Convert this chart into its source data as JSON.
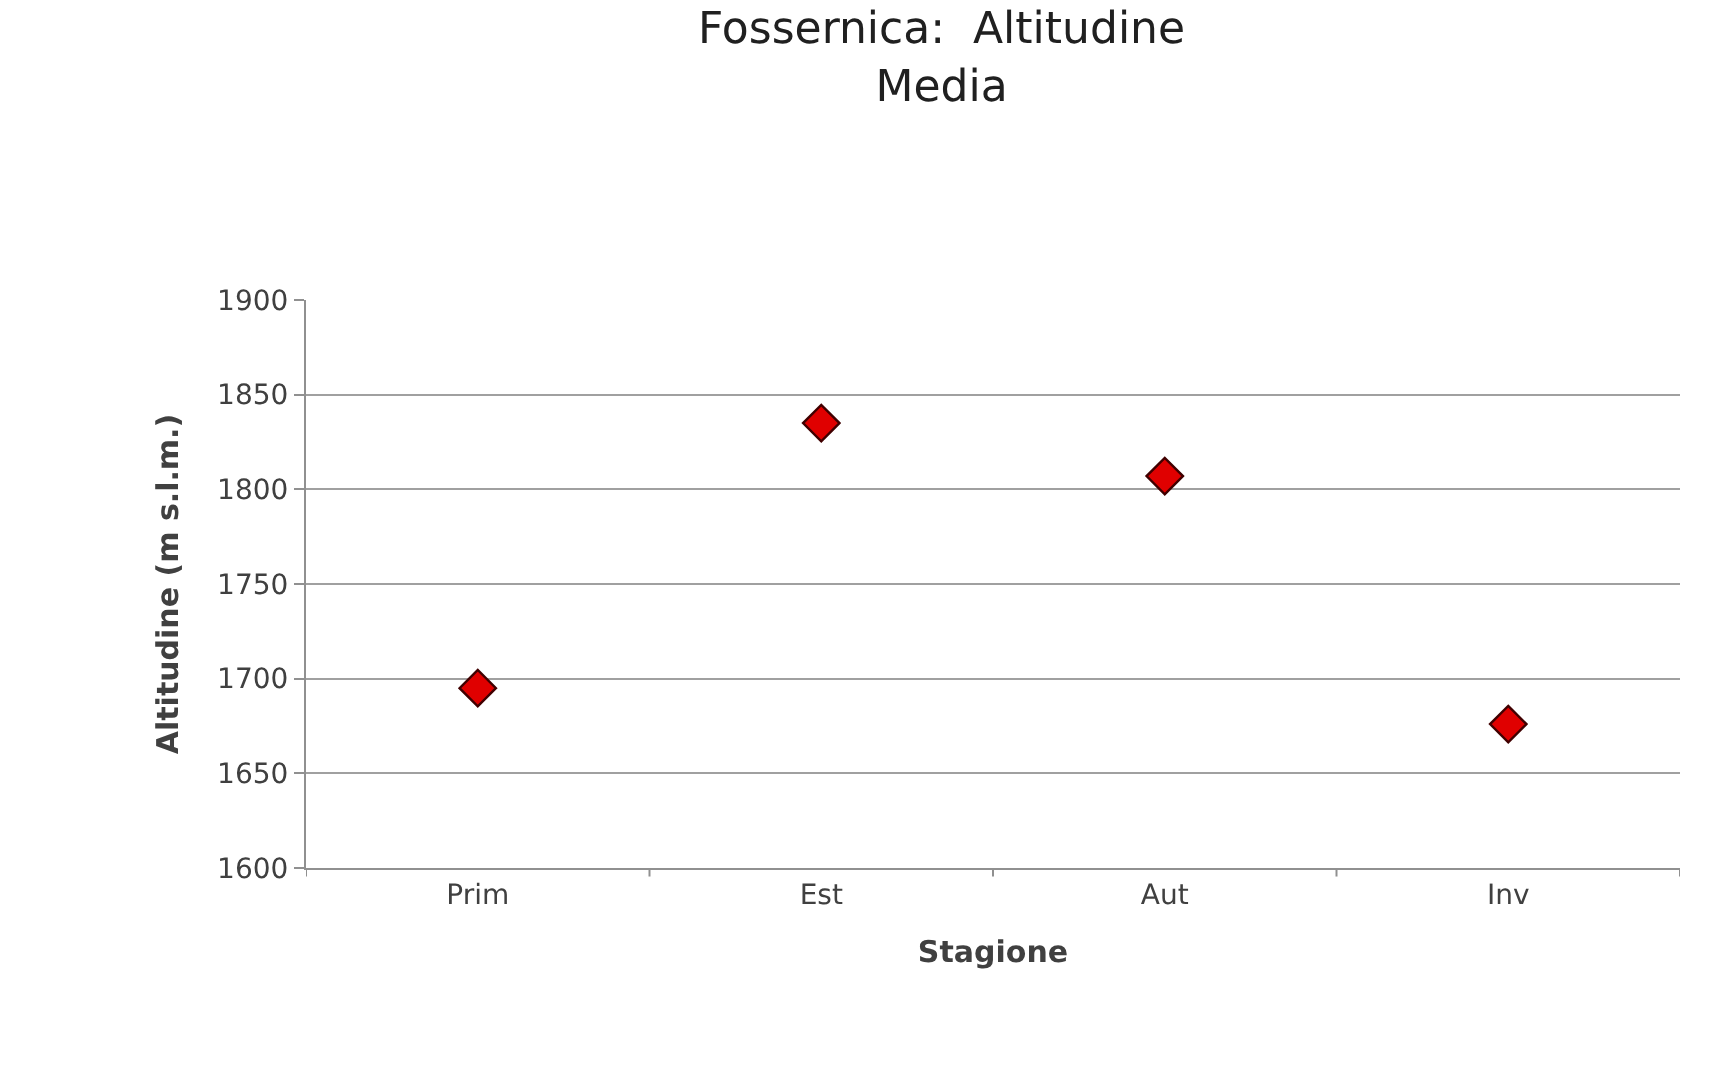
{
  "chart_data": {
    "type": "scatter",
    "title": "Fossernica:  Altitudine\nMedia",
    "xlabel": "Stagione",
    "ylabel": "Altitudine (m s.l.m.)",
    "categories": [
      "Prim",
      "Est",
      "Aut",
      "Inv"
    ],
    "series": [
      {
        "color": "#e00000",
        "values": [
          1695,
          1835,
          1807,
          1676
        ]
      }
    ],
    "ylim": [
      1600,
      1900
    ],
    "yticks": [
      1600,
      1650,
      1700,
      1750,
      1800,
      1850,
      1900
    ],
    "grid": "y",
    "legend": false,
    "marker": "diamond"
  }
}
